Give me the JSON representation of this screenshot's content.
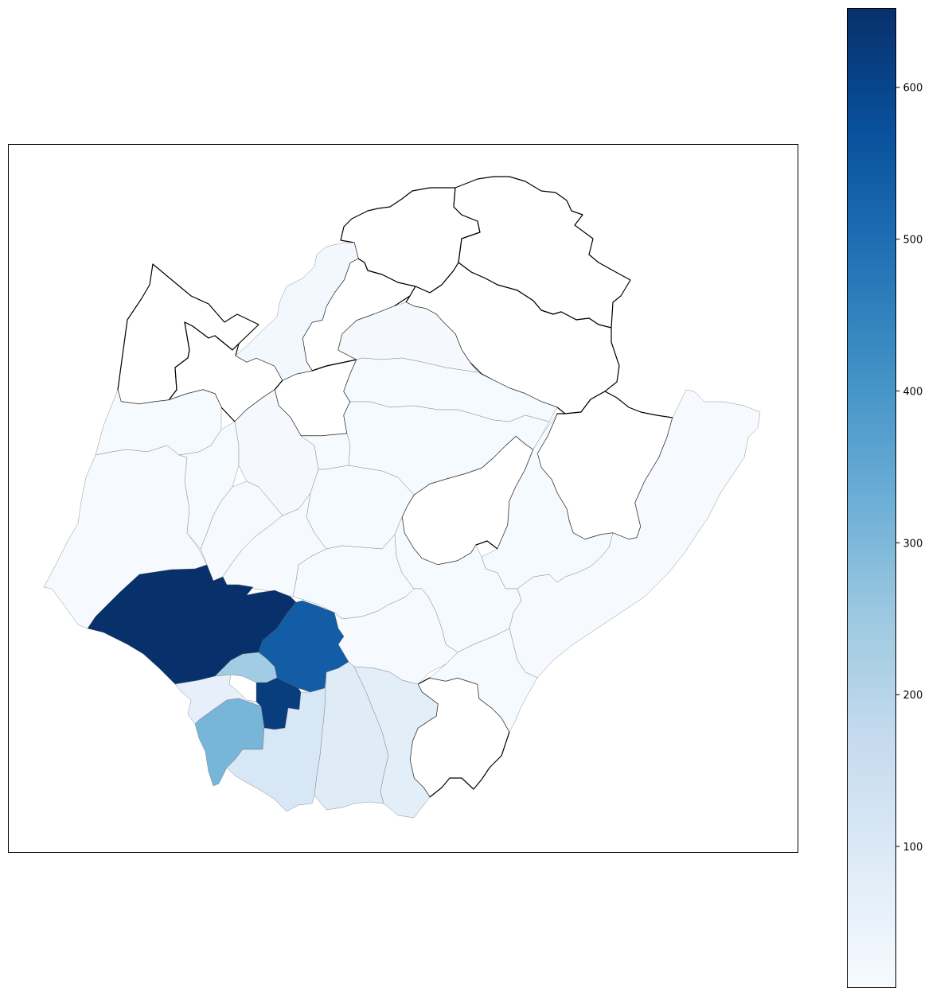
{
  "colormap": {
    "name": "Blues",
    "stops": [
      "#f7fbff",
      "#deebf7",
      "#c6dbef",
      "#9ecae1",
      "#6baed6",
      "#4292c6",
      "#2171b5",
      "#08519c",
      "#08306b"
    ]
  },
  "colorbar": {
    "label": "",
    "min": 7,
    "max": 652,
    "ticks": [
      "100",
      "200",
      "300",
      "400",
      "500",
      "600"
    ]
  },
  "map_data": {
    "regions": [
      {
        "id": "r1",
        "value": 650
      },
      {
        "id": "r2",
        "value": 540
      },
      {
        "id": "r3",
        "value": 240
      },
      {
        "id": "r4",
        "value": 620
      },
      {
        "id": "r5",
        "value": 60
      },
      {
        "id": "r6",
        "value": 310
      },
      {
        "id": "r7",
        "value": 110
      },
      {
        "id": "r8",
        "value": 85
      },
      {
        "id": "r9",
        "value": 75
      },
      {
        "id": "r10",
        "value": 20
      },
      {
        "id": "r11",
        "value": 15
      },
      {
        "id": "r12",
        "value": 12
      },
      {
        "id": "r13",
        "value": 12
      },
      {
        "id": "r14",
        "value": 10
      },
      {
        "id": "r15",
        "value": 12
      },
      {
        "id": "r16",
        "value": 15
      },
      {
        "id": "r17",
        "value": 12
      },
      {
        "id": "r18",
        "value": 12
      },
      {
        "id": "r19",
        "value": 10
      },
      {
        "id": "r20",
        "value": 12
      },
      {
        "id": "r21",
        "value": 10
      },
      {
        "id": "r22",
        "value": 12
      },
      {
        "id": "r23",
        "value": 10
      },
      {
        "id": "r24",
        "value": 12
      },
      {
        "id": "r25",
        "value": 12
      },
      {
        "id": "r26",
        "value": 10
      },
      {
        "id": "r27",
        "value": 12
      },
      {
        "id": "r28",
        "value": 10
      },
      {
        "id": "r29",
        "value": 8
      },
      {
        "id": "r30",
        "value": 12
      },
      {
        "id": "r31",
        "value": 12
      },
      {
        "id": "r32",
        "value": 10
      },
      {
        "id": "r33",
        "value": 12
      },
      {
        "id": "r34",
        "value": 12
      },
      {
        "id": "r35",
        "value": 8
      }
    ],
    "no_data_regions": [
      "n1",
      "n2",
      "n3",
      "n4",
      "n5",
      "n6",
      "n7",
      "n8",
      "n9"
    ]
  }
}
